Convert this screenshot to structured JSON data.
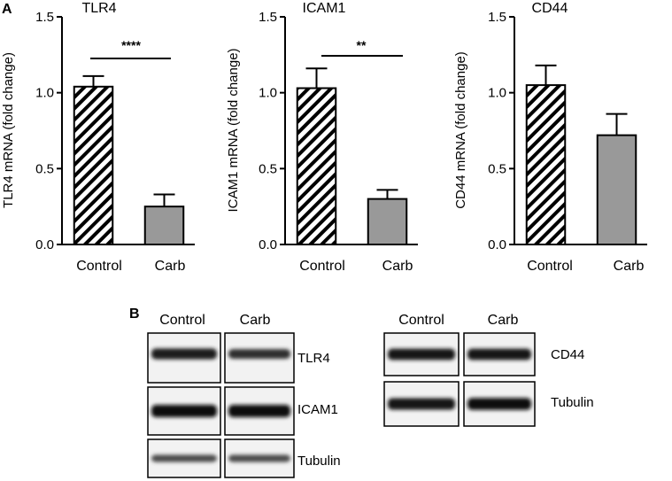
{
  "panel_labels": {
    "a": "A",
    "b": "B"
  },
  "colors": {
    "control_hatch": "#000000",
    "carb_fill": "#999999",
    "axis": "#000000"
  },
  "chart_data": [
    {
      "type": "bar",
      "title": "TLR4",
      "ylabel": "TLR4 mRNA (fold change)",
      "categories": [
        "Control",
        "Carb"
      ],
      "values": [
        1.04,
        0.25
      ],
      "errors": [
        0.07,
        0.08
      ],
      "ylim": [
        0,
        1.5
      ],
      "yticks": [
        "0.0",
        "0.5",
        "1.0",
        "1.5"
      ],
      "significance": "****"
    },
    {
      "type": "bar",
      "title": "ICAM1",
      "ylabel": "ICAM1 mRNA (fold change)",
      "categories": [
        "Control",
        "Carb"
      ],
      "values": [
        1.03,
        0.3
      ],
      "errors": [
        0.13,
        0.06
      ],
      "ylim": [
        0,
        1.5
      ],
      "yticks": [
        "0.0",
        "0.5",
        "1.0",
        "1.5"
      ],
      "significance": "**"
    },
    {
      "type": "bar",
      "title": "CD44",
      "ylabel": "CD44 mRNA (fold change)",
      "categories": [
        "Control",
        "Carb"
      ],
      "values": [
        1.05,
        0.72
      ],
      "errors": [
        0.13,
        0.14
      ],
      "ylim": [
        0,
        1.5
      ],
      "yticks": [
        "0.0",
        "0.5",
        "1.0",
        "1.5"
      ],
      "significance": ""
    }
  ],
  "blots": {
    "left": {
      "columns": [
        "Control",
        "Carb"
      ],
      "rows": [
        {
          "label": "TLR4",
          "intensity": [
            0.8,
            0.65
          ]
        },
        {
          "label": "ICAM1",
          "intensity": [
            1.0,
            1.0
          ]
        },
        {
          "label": "Tubulin",
          "intensity": [
            0.35,
            0.35
          ]
        }
      ]
    },
    "right": {
      "columns": [
        "Control",
        "Carb"
      ],
      "rows": [
        {
          "label": "CD44",
          "intensity": [
            0.85,
            0.85
          ]
        },
        {
          "label": "Tubulin",
          "intensity": [
            0.9,
            0.95
          ]
        }
      ]
    }
  }
}
